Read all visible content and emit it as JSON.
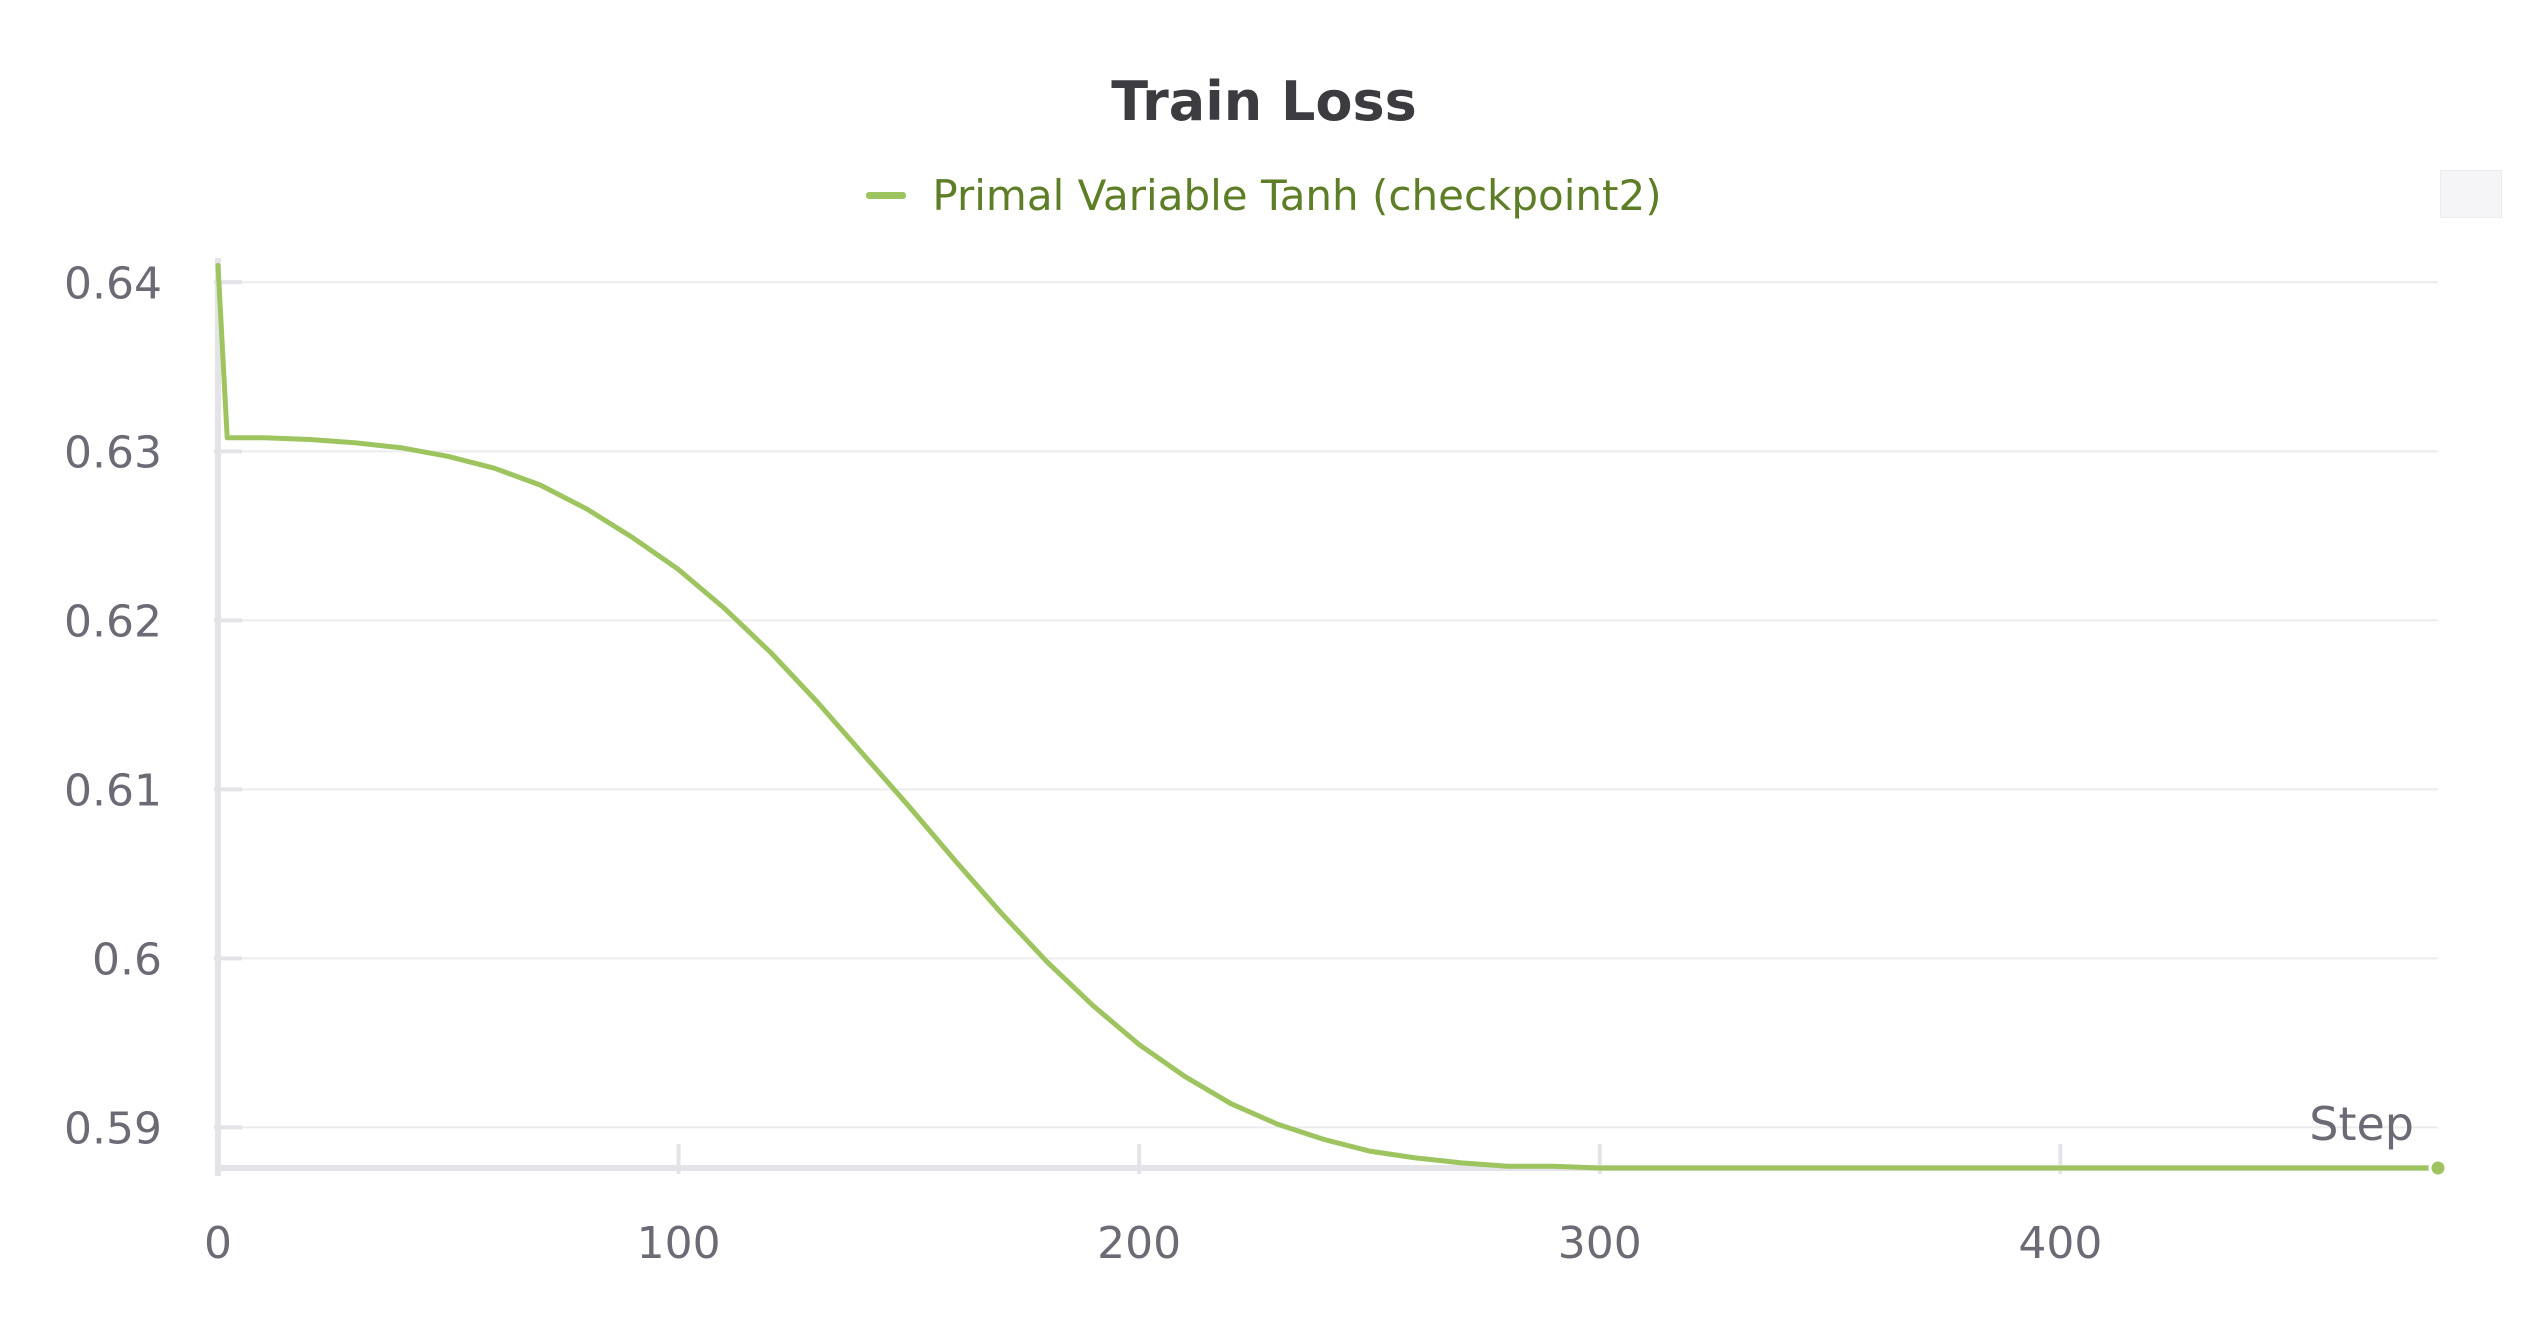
{
  "chart_data": {
    "type": "line",
    "title": "Train Loss",
    "xlabel": "Step",
    "ylabel": "",
    "xlim": [
      0,
      482
    ],
    "ylim": [
      0.5876,
      0.6412
    ],
    "xticks": [
      0,
      100,
      200,
      300,
      400
    ],
    "xtick_labels": [
      "0",
      "100",
      "200",
      "300",
      "400"
    ],
    "yticks": [
      0.59,
      0.6,
      0.61,
      0.62,
      0.63,
      0.64
    ],
    "ytick_labels": [
      "0.59",
      "0.6",
      "0.61",
      "0.62",
      "0.63",
      "0.64"
    ],
    "grid": true,
    "legend_position": "top-center",
    "series": [
      {
        "name": "Primal Variable Tanh (checkpoint2)",
        "color": "#9dc45f",
        "x": [
          0,
          2,
          10,
          20,
          30,
          40,
          50,
          60,
          70,
          80,
          90,
          100,
          110,
          120,
          130,
          140,
          150,
          160,
          170,
          180,
          190,
          200,
          210,
          220,
          230,
          240,
          250,
          260,
          270,
          280,
          290,
          300,
          310,
          320,
          340,
          360,
          380,
          400,
          420,
          440,
          460,
          482
        ],
        "y": [
          0.641,
          0.6308,
          0.6308,
          0.6307,
          0.6305,
          0.6302,
          0.6297,
          0.629,
          0.628,
          0.6266,
          0.6249,
          0.623,
          0.6207,
          0.6181,
          0.6152,
          0.6121,
          0.609,
          0.6058,
          0.6027,
          0.5998,
          0.5972,
          0.5949,
          0.593,
          0.5914,
          0.5902,
          0.5893,
          0.5886,
          0.5882,
          0.5879,
          0.5877,
          0.5877,
          0.5876,
          0.5876,
          0.5876,
          0.5876,
          0.5876,
          0.5876,
          0.5876,
          0.5876,
          0.5876,
          0.5876,
          0.5876
        ]
      }
    ]
  },
  "colors": {
    "series": "#9dc45f",
    "legend_text": "#5d7d26",
    "title": "#3b3b40",
    "axis": "#e4e4e8",
    "grid": "#ececef",
    "tick_text": "#6b6b76"
  }
}
